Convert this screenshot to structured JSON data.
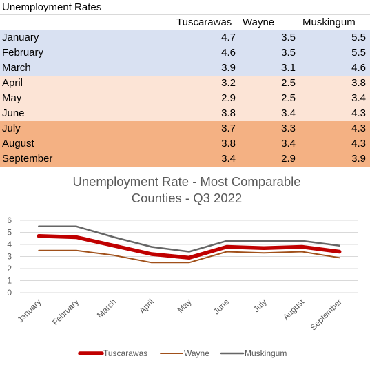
{
  "table": {
    "title": "Unemployment Rates",
    "headers": [
      "Tuscarawas",
      "Wayne",
      "Muskingum"
    ],
    "rows": [
      {
        "month": "January",
        "values": [
          "4.7",
          "3.5",
          "5.5"
        ],
        "band": "q1"
      },
      {
        "month": "February",
        "values": [
          "4.6",
          "3.5",
          "5.5"
        ],
        "band": "q1"
      },
      {
        "month": "March",
        "values": [
          "3.9",
          "3.1",
          "4.6"
        ],
        "band": "q1"
      },
      {
        "month": "April",
        "values": [
          "3.2",
          "2.5",
          "3.8"
        ],
        "band": "q2"
      },
      {
        "month": "May",
        "values": [
          "2.9",
          "2.5",
          "3.4"
        ],
        "band": "q2"
      },
      {
        "month": "June",
        "values": [
          "3.8",
          "3.4",
          "4.3"
        ],
        "band": "q2"
      },
      {
        "month": "July",
        "values": [
          "3.7",
          "3.3",
          "4.3"
        ],
        "band": "q3"
      },
      {
        "month": "August",
        "values": [
          "3.8",
          "3.4",
          "4.3"
        ],
        "band": "q3"
      },
      {
        "month": "September",
        "values": [
          "3.4",
          "2.9",
          "3.9"
        ],
        "band": "q3"
      }
    ],
    "band_colors": {
      "q1": "#d9e1f2",
      "q2": "#fce4d6",
      "q3": "#f4b183"
    }
  },
  "chart_data": {
    "type": "line",
    "title": "Unemployment Rate - Most Comparable Counties - Q3 2022",
    "title_lines": [
      "Unemployment Rate - Most Comparable",
      "Counties - Q3 2022"
    ],
    "categories": [
      "January",
      "February",
      "March",
      "April",
      "May",
      "June",
      "July",
      "August",
      "September"
    ],
    "series": [
      {
        "name": "Tuscarawas",
        "values": [
          4.7,
          4.6,
          3.9,
          3.2,
          2.9,
          3.8,
          3.7,
          3.8,
          3.4
        ],
        "color": "#c00000",
        "width": 5.5
      },
      {
        "name": "Wayne",
        "values": [
          3.5,
          3.5,
          3.1,
          2.5,
          2.5,
          3.4,
          3.3,
          3.4,
          2.9
        ],
        "color": "#a0501a",
        "width": 2
      },
      {
        "name": "Muskingum",
        "values": [
          5.5,
          5.5,
          4.6,
          3.8,
          3.4,
          4.3,
          4.3,
          4.3,
          3.9
        ],
        "color": "#666666",
        "width": 2.5
      }
    ],
    "ylim": [
      0,
      6
    ],
    "yticks": [
      "0",
      "1",
      "2",
      "3",
      "4",
      "5",
      "6"
    ],
    "grid": true,
    "legend": "bottom"
  }
}
